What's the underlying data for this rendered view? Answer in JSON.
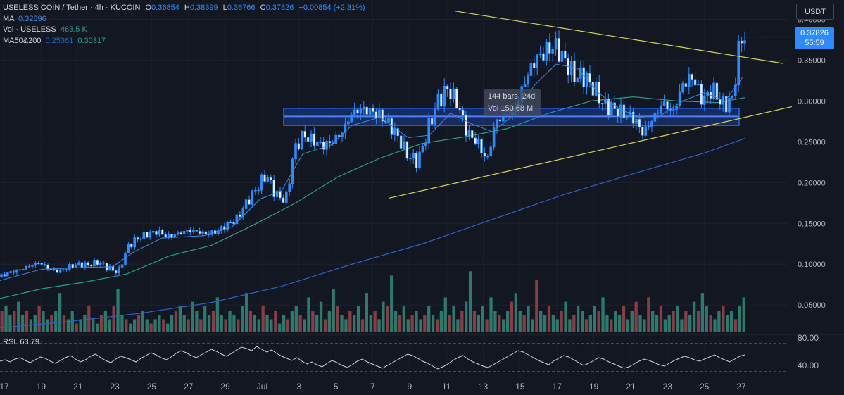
{
  "header": {
    "symbol": "USELESS COIN / Tether · 4h · KUCOIN",
    "o_label": "O",
    "o_value": "0.36854",
    "h_label": "H",
    "h_value": "0.38399",
    "l_label": "L",
    "l_value": "0.36766",
    "c_label": "C",
    "c_value": "0.37826",
    "change": "+0.00854 (+2.31%)",
    "ma_label": "MA",
    "ma_value": "0.32896",
    "vol_label": "Vol · USELESS",
    "vol_value": "463.5 K",
    "ma2_label": "MA50&200",
    "ma2_value1": "0.25361",
    "ma2_value2": "0.30317"
  },
  "currency_button": "USDT",
  "last_price": {
    "price": "0.37826",
    "countdown": "55:59"
  },
  "measure_tooltip": {
    "line1": "144 bars, 24d",
    "line2": "Vol 150.68 M"
  },
  "rsi": {
    "label": "RSI",
    "value": "63.79",
    "levels": [
      "80.00",
      "40.00"
    ]
  },
  "colors": {
    "background": "#131722",
    "candle": "#2e8bff",
    "vol_up": "#2a7a6e",
    "vol_down": "#8c3a44",
    "ma_short": "#3a8bdf",
    "ma50": "#27a08f",
    "ma200": "#2a62c9",
    "trendline": "#d7d55a",
    "support_zone": "#2962ff",
    "rsi": "#d1d4dc"
  },
  "chart_data": {
    "type": "candlestick",
    "y_axis": {
      "ticks": [
        "0.40000",
        "0.35000",
        "0.30000",
        "0.25000",
        "0.20000",
        "0.15000",
        "0.10000",
        "0.05000"
      ],
      "ylim": [
        0.02,
        0.415
      ]
    },
    "x_axis": {
      "ticks": [
        "17",
        "19",
        "21",
        "23",
        "25",
        "27",
        "29",
        "Jul",
        "3",
        "5",
        "7",
        "9",
        "11",
        "13",
        "15",
        "17",
        "19",
        "21",
        "23",
        "25",
        "27"
      ]
    },
    "close_path": [
      [
        0,
        0.085
      ],
      [
        14,
        0.09
      ],
      [
        28,
        0.093
      ],
      [
        42,
        0.098
      ],
      [
        56,
        0.102
      ],
      [
        70,
        0.094
      ],
      [
        84,
        0.091
      ],
      [
        98,
        0.097
      ],
      [
        112,
        0.1
      ],
      [
        126,
        0.099
      ],
      [
        140,
        0.103
      ],
      [
        154,
        0.095
      ],
      [
        168,
        0.09
      ],
      [
        182,
        0.122
      ],
      [
        196,
        0.132
      ],
      [
        210,
        0.137
      ],
      [
        224,
        0.14
      ],
      [
        238,
        0.134
      ],
      [
        252,
        0.137
      ],
      [
        266,
        0.141
      ],
      [
        280,
        0.14
      ],
      [
        294,
        0.137
      ],
      [
        308,
        0.14
      ],
      [
        322,
        0.148
      ],
      [
        336,
        0.155
      ],
      [
        350,
        0.175
      ],
      [
        364,
        0.192
      ],
      [
        378,
        0.21
      ],
      [
        392,
        0.185
      ],
      [
        406,
        0.178
      ],
      [
        418,
        0.24
      ],
      [
        430,
        0.258
      ],
      [
        444,
        0.252
      ],
      [
        458,
        0.245
      ],
      [
        472,
        0.25
      ],
      [
        486,
        0.262
      ],
      [
        500,
        0.285
      ],
      [
        514,
        0.29
      ],
      [
        528,
        0.287
      ],
      [
        540,
        0.282
      ],
      [
        552,
        0.272
      ],
      [
        566,
        0.255
      ],
      [
        580,
        0.232
      ],
      [
        594,
        0.226
      ],
      [
        608,
        0.265
      ],
      [
        622,
        0.3
      ],
      [
        636,
        0.315
      ],
      [
        650,
        0.297
      ],
      [
        664,
        0.26
      ],
      [
        678,
        0.25
      ],
      [
        692,
        0.226
      ],
      [
        704,
        0.275
      ],
      [
        718,
        0.282
      ],
      [
        732,
        0.29
      ],
      [
        746,
        0.325
      ],
      [
        760,
        0.35
      ],
      [
        774,
        0.36
      ],
      [
        788,
        0.368
      ],
      [
        802,
        0.35
      ],
      [
        816,
        0.33
      ],
      [
        830,
        0.33
      ],
      [
        844,
        0.315
      ],
      [
        858,
        0.295
      ],
      [
        872,
        0.29
      ],
      [
        886,
        0.285
      ],
      [
        900,
        0.279
      ],
      [
        914,
        0.26
      ],
      [
        928,
        0.279
      ],
      [
        942,
        0.298
      ],
      [
        956,
        0.285
      ],
      [
        970,
        0.32
      ],
      [
        984,
        0.33
      ],
      [
        998,
        0.3
      ],
      [
        1012,
        0.315
      ],
      [
        1026,
        0.295
      ],
      [
        1040,
        0.3
      ],
      [
        1052,
        0.378
      ],
      [
        1060,
        0.378
      ]
    ],
    "ma_short_path": [
      [
        0,
        0.08
      ],
      [
        60,
        0.094
      ],
      [
        120,
        0.096
      ],
      [
        160,
        0.097
      ],
      [
        190,
        0.115
      ],
      [
        230,
        0.132
      ],
      [
        290,
        0.135
      ],
      [
        330,
        0.146
      ],
      [
        370,
        0.18
      ],
      [
        400,
        0.19
      ],
      [
        430,
        0.235
      ],
      [
        470,
        0.246
      ],
      [
        500,
        0.27
      ],
      [
        540,
        0.28
      ],
      [
        580,
        0.255
      ],
      [
        610,
        0.258
      ],
      [
        640,
        0.285
      ],
      [
        670,
        0.272
      ],
      [
        700,
        0.262
      ],
      [
        730,
        0.283
      ],
      [
        760,
        0.32
      ],
      [
        790,
        0.345
      ],
      [
        820,
        0.34
      ],
      [
        850,
        0.31
      ],
      [
        880,
        0.29
      ],
      [
        910,
        0.28
      ],
      [
        940,
        0.283
      ],
      [
        970,
        0.3
      ],
      [
        1000,
        0.31
      ],
      [
        1030,
        0.3
      ],
      [
        1055,
        0.329
      ]
    ],
    "ma50_path": [
      [
        0,
        0.058
      ],
      [
        60,
        0.07
      ],
      [
        120,
        0.078
      ],
      [
        180,
        0.088
      ],
      [
        240,
        0.11
      ],
      [
        300,
        0.123
      ],
      [
        360,
        0.148
      ],
      [
        420,
        0.175
      ],
      [
        480,
        0.207
      ],
      [
        540,
        0.23
      ],
      [
        600,
        0.248
      ],
      [
        660,
        0.256
      ],
      [
        720,
        0.266
      ],
      [
        780,
        0.285
      ],
      [
        840,
        0.3
      ],
      [
        900,
        0.305
      ],
      [
        960,
        0.3
      ],
      [
        1020,
        0.298
      ],
      [
        1058,
        0.304
      ]
    ],
    "ma200_path": [
      [
        0,
        0.022
      ],
      [
        100,
        0.03
      ],
      [
        200,
        0.04
      ],
      [
        300,
        0.053
      ],
      [
        400,
        0.073
      ],
      [
        500,
        0.1
      ],
      [
        600,
        0.125
      ],
      [
        700,
        0.155
      ],
      [
        800,
        0.185
      ],
      [
        900,
        0.211
      ],
      [
        1000,
        0.236
      ],
      [
        1058,
        0.254
      ]
    ],
    "volume_path": [
      0.5,
      0.6,
      0.4,
      0.5,
      0.7,
      0.4,
      0.5,
      0.3,
      0.4,
      0.6,
      0.5,
      0.3,
      0.4,
      0.5,
      0.9,
      0.4,
      0.3,
      0.5,
      0.2,
      0.3,
      0.4,
      0.6,
      0.3,
      0.2,
      0.4,
      0.5,
      0.3,
      0.6,
      1.0,
      0.4,
      0.3,
      0.2,
      0.3,
      0.4,
      0.5,
      0.3,
      0.2,
      0.3,
      0.4,
      0.3,
      0.2,
      0.4,
      0.5,
      0.6,
      0.4,
      0.3,
      0.7,
      0.5,
      0.3,
      0.6,
      0.4,
      0.5,
      0.8,
      0.4,
      0.3,
      0.5,
      0.4,
      0.3,
      0.6,
      0.9,
      0.5,
      0.4,
      0.3,
      0.6,
      0.4,
      0.3,
      0.5,
      0.2,
      0.4,
      0.3,
      0.5,
      0.6,
      0.4,
      0.3,
      0.8,
      0.5,
      0.4,
      0.7,
      0.3,
      0.5,
      1.0,
      0.6,
      0.4,
      0.3,
      0.5,
      0.4,
      0.6,
      0.3,
      0.9,
      0.4,
      0.5,
      0.3,
      0.7,
      0.6,
      1.3,
      0.5,
      0.4,
      0.6,
      0.3,
      0.4,
      0.5,
      0.3,
      0.4,
      0.6,
      0.4,
      0.3,
      0.5,
      0.8,
      0.4,
      0.6,
      0.3,
      0.5,
      0.7,
      1.4,
      0.5,
      0.4,
      0.6,
      0.3,
      0.8,
      0.5,
      0.4,
      0.3,
      0.5,
      0.7,
      0.9,
      0.5,
      0.4,
      0.6,
      0.3,
      1.2,
      0.5,
      0.4,
      0.6,
      0.4,
      0.3,
      0.5,
      0.7,
      0.3,
      0.4,
      0.6,
      0.5,
      0.3,
      0.4,
      0.6,
      0.5,
      0.8,
      0.4,
      0.3,
      0.5,
      0.4,
      0.6,
      0.3,
      0.5,
      0.7,
      0.4,
      0.3,
      0.8,
      0.5,
      0.4,
      0.6,
      0.3,
      0.4,
      0.5,
      0.6,
      0.3,
      0.5,
      0.4,
      0.7,
      0.5,
      0.9,
      0.6,
      0.4,
      0.3,
      0.5,
      0.6,
      0.4,
      0.5,
      0.3,
      0.6,
      0.8
    ],
    "trendline_upper": [
      [
        647,
        0.41
      ],
      [
        1112,
        0.346
      ]
    ],
    "trendline_lower": [
      [
        553,
        0.181
      ],
      [
        1125,
        0.293
      ]
    ],
    "support_zone": {
      "y_top": 0.291,
      "y_bottom": 0.27,
      "x_start": 403,
      "x_end": 1050,
      "level": 0.281
    },
    "rsi_series": [
      55,
      57,
      54,
      58,
      60,
      56,
      53,
      57,
      61,
      59,
      55,
      52,
      56,
      60,
      63,
      58,
      54,
      57,
      62,
      65,
      60,
      56,
      53,
      58,
      62,
      60,
      57,
      54,
      59,
      63,
      67,
      64,
      60,
      57,
      61,
      66,
      70,
      67,
      63,
      60,
      64,
      68,
      72,
      69,
      65,
      62,
      66,
      71,
      75,
      73,
      70,
      76,
      72,
      68,
      71,
      66,
      62,
      59,
      56,
      60,
      55,
      51,
      54,
      50,
      47,
      52,
      56,
      53,
      49,
      46,
      50,
      55,
      58,
      54,
      51,
      48,
      45,
      49,
      53,
      57,
      61,
      65,
      63,
      59,
      55,
      52,
      48,
      44,
      47,
      51,
      56,
      60,
      63,
      58,
      54,
      51,
      48,
      46,
      50,
      54,
      58,
      62,
      66,
      70,
      68,
      64,
      60,
      56,
      53,
      50,
      55,
      59,
      63,
      61,
      57,
      53,
      49,
      52,
      56,
      60,
      58,
      54,
      51,
      48,
      45,
      47,
      51,
      55,
      58,
      56,
      53,
      50,
      48,
      52,
      56,
      59,
      62,
      60,
      57,
      55,
      58,
      61,
      64,
      60,
      57,
      54,
      58,
      62,
      64
    ],
    "rsi_levels": [
      80,
      40
    ]
  }
}
